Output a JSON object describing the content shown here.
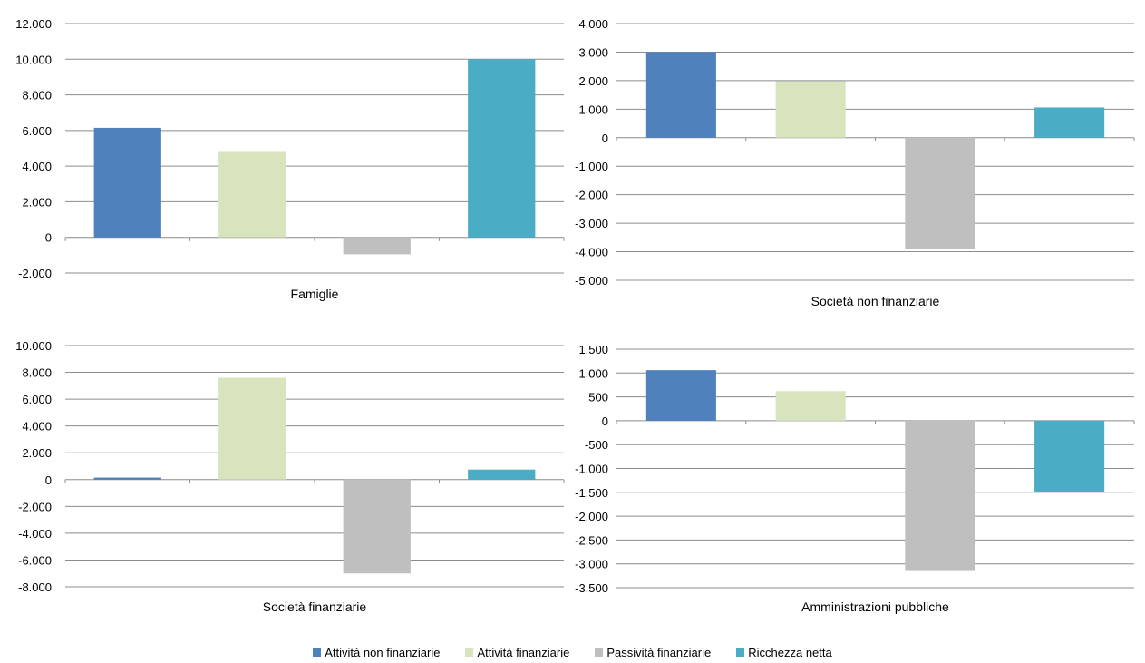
{
  "series_names": [
    "Attività non finanziarie",
    "Attività finanziarie",
    "Passività finanziarie",
    "Ricchezza netta"
  ],
  "colors": [
    "#4f81bd",
    "#d7e4bd",
    "#bfbfbf",
    "#4bacc6"
  ],
  "chart_data": [
    {
      "type": "bar",
      "title": "Famiglie",
      "categories": [
        "Attività non finanziarie",
        "Attività finanziarie",
        "Passività finanziarie",
        "Ricchezza netta"
      ],
      "values": [
        6150,
        4800,
        -950,
        10000
      ],
      "ylim": [
        -2000,
        12000
      ],
      "yticks": [
        12000,
        10000,
        8000,
        6000,
        4000,
        2000,
        0,
        -2000
      ],
      "ytick_labels": [
        "12.000",
        "10.000",
        "8.000",
        "6.000",
        "4.000",
        "2.000",
        "0",
        "-2.000"
      ],
      "grid": true
    },
    {
      "type": "bar",
      "title": "Società non finanziarie",
      "categories": [
        "Attività non finanziarie",
        "Attività finanziarie",
        "Passività finanziarie",
        "Ricchezza netta"
      ],
      "values": [
        3000,
        1980,
        -3900,
        1060
      ],
      "ylim": [
        -5000,
        4000
      ],
      "yticks": [
        4000,
        3000,
        2000,
        1000,
        0,
        -1000,
        -2000,
        -3000,
        -4000,
        -5000
      ],
      "ytick_labels": [
        "4.000",
        "3.000",
        "2.000",
        "1.000",
        "0",
        "-1.000",
        "-2.000",
        "-3.000",
        "-4.000",
        "-5.000"
      ],
      "grid": true
    },
    {
      "type": "bar",
      "title": "Società finanziarie",
      "categories": [
        "Attività non finanziarie",
        "Attività finanziarie",
        "Passività finanziarie",
        "Ricchezza netta"
      ],
      "values": [
        150,
        7600,
        -7000,
        750
      ],
      "ylim": [
        -8000,
        10000
      ],
      "yticks": [
        10000,
        8000,
        6000,
        4000,
        2000,
        0,
        -2000,
        -4000,
        -6000,
        -8000
      ],
      "ytick_labels": [
        "10.000",
        "8.000",
        "6.000",
        "4.000",
        "2.000",
        "0",
        "-2.000",
        "-4.000",
        "-6.000",
        "-8.000"
      ],
      "grid": true
    },
    {
      "type": "bar",
      "title": "Amministrazioni pubbliche",
      "categories": [
        "Attività non finanziarie",
        "Attività finanziarie",
        "Passività finanziarie",
        "Ricchezza netta"
      ],
      "values": [
        1060,
        620,
        -3150,
        -1500
      ],
      "ylim": [
        -3500,
        1500
      ],
      "yticks": [
        1500,
        1000,
        500,
        0,
        -500,
        -1000,
        -1500,
        -2000,
        -2500,
        -3000,
        -3500
      ],
      "ytick_labels": [
        "1.500",
        "1.000",
        "500",
        "0",
        "-500",
        "-1.000",
        "-1.500",
        "-2.000",
        "-2.500",
        "-3.000",
        "-3.500"
      ],
      "grid": true
    }
  ]
}
